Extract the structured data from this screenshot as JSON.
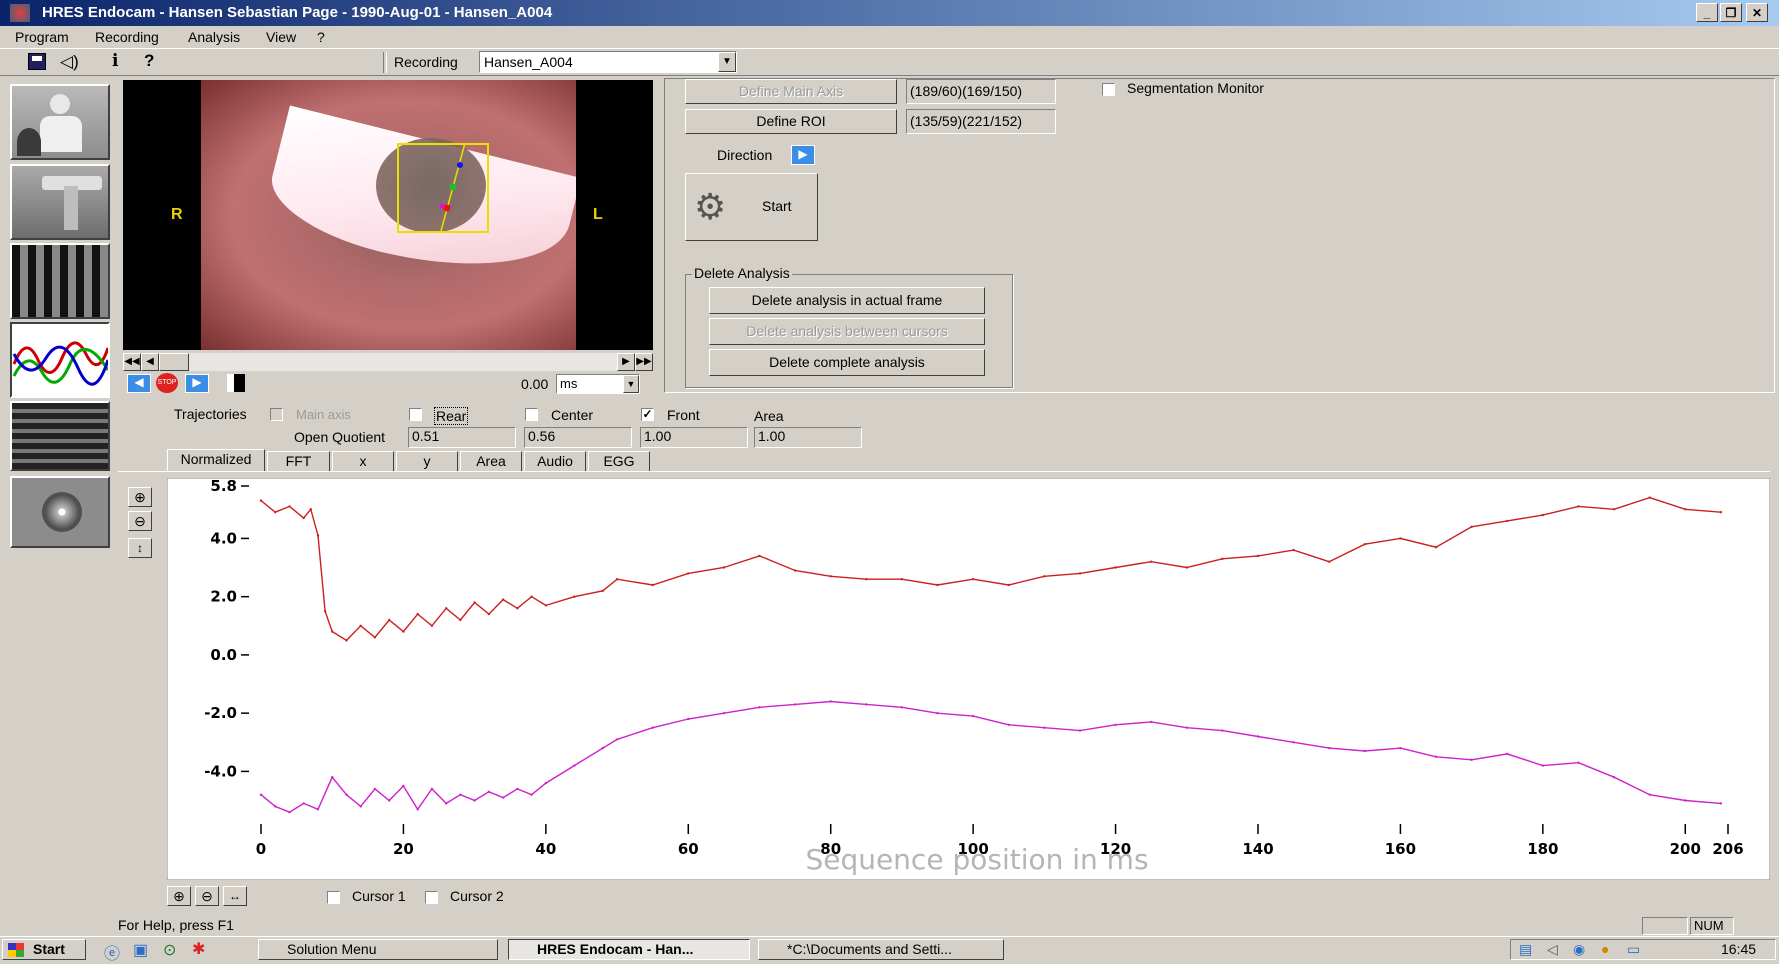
{
  "window": {
    "title": "HRES Endocam - Hansen Sebastian Page - 1990-Aug-01 - Hansen_A004",
    "minimize_label": "_",
    "restore_label": "❐",
    "close_label": "✕"
  },
  "menu": [
    "Program",
    "Recording",
    "Analysis",
    "View",
    "?"
  ],
  "toolbar": {
    "recording_label": "Recording",
    "recording_value": "Hansen_A004"
  },
  "video": {
    "label_r": "R",
    "label_l": "L",
    "time_value": "0.00",
    "time_unit": "ms"
  },
  "controls": {
    "define_main_axis_label": "Define Main Axis",
    "main_axis_value": "(189/60)(169/150)",
    "define_roi_label": "Define ROI",
    "roi_value": "(135/59)(221/152)",
    "direction_label": "Direction",
    "start_label": "Start",
    "segmentation_monitor_label": "Segmentation Monitor",
    "segmentation_monitor_checked": false
  },
  "delete_analysis": {
    "group_label": "Delete Analysis",
    "actual_frame_label": "Delete analysis in actual frame",
    "between_cursors_label": "Delete analysis between cursors",
    "complete_label": "Delete complete analysis"
  },
  "trajectories": {
    "label": "Trajectories",
    "items": [
      {
        "label": "Main axis",
        "checked": false,
        "disabled": true
      },
      {
        "label": "Rear",
        "checked": false,
        "disabled": false
      },
      {
        "label": "Center",
        "checked": false,
        "disabled": false
      },
      {
        "label": "Front",
        "checked": true,
        "disabled": false
      }
    ],
    "area_label": "Area",
    "open_quotient_label": "Open Quotient",
    "open_quotient_values": [
      "0.51",
      "0.56",
      "1.00",
      "1.00"
    ]
  },
  "tabs": [
    "Normalized",
    "FFT",
    "x",
    "y",
    "Area",
    "Audio",
    "EGG"
  ],
  "active_tab": "Normalized",
  "bottom": {
    "cursor1_label": "Cursor 1",
    "cursor2_label": "Cursor 2"
  },
  "status": {
    "help_text": "For Help, press F1",
    "num_indicator": "NUM"
  },
  "taskbar": {
    "start_label": "Start",
    "items": [
      "Solution Menu",
      "HRES Endocam - Han...",
      "*C:\\Documents and Setti..."
    ],
    "clock": "16:45"
  },
  "colors": {
    "series_upper": "#cc1f1f",
    "series_lower": "#cc22cc",
    "title_gradient_start": "#0a246a"
  },
  "chart_data": {
    "type": "line",
    "xlabel": "Sequence position in ms",
    "ylabel": "",
    "xlim": [
      0,
      206
    ],
    "ylim": [
      -5.6,
      5.8
    ],
    "xticks": [
      "0",
      "20",
      "40",
      "60",
      "80",
      "100",
      "120",
      "140",
      "160",
      "180",
      "200",
      "206"
    ],
    "yticks": [
      "5.8",
      "4.0",
      "2.0",
      "0.0",
      "-2.0",
      "-4.0"
    ],
    "series": [
      {
        "x": [
          0,
          2,
          4,
          6,
          7,
          8,
          9,
          10,
          12,
          14,
          16,
          18,
          20,
          22,
          24,
          26,
          28,
          30,
          32,
          34,
          36,
          38,
          40,
          44,
          48,
          50,
          55,
          60,
          65,
          70,
          75,
          80,
          85,
          90,
          95,
          100,
          105,
          110,
          115,
          120,
          125,
          130,
          135,
          140,
          145,
          150,
          155,
          160,
          165,
          170,
          175,
          180,
          185,
          190,
          195,
          200,
          205
        ],
        "y": [
          5.3,
          4.9,
          5.1,
          4.7,
          5.0,
          4.1,
          1.5,
          0.8,
          0.5,
          1.0,
          0.6,
          1.2,
          0.8,
          1.4,
          1.0,
          1.6,
          1.2,
          1.8,
          1.4,
          1.9,
          1.6,
          2.0,
          1.7,
          2.0,
          2.2,
          2.6,
          2.4,
          2.8,
          3.0,
          3.4,
          2.9,
          2.7,
          2.6,
          2.6,
          2.4,
          2.6,
          2.4,
          2.7,
          2.8,
          3.0,
          3.2,
          3.0,
          3.3,
          3.4,
          3.6,
          3.2,
          3.8,
          4.0,
          3.7,
          4.4,
          4.6,
          4.8,
          5.1,
          5.0,
          5.4,
          5.0,
          4.9
        ]
      },
      {
        "x": [
          0,
          2,
          4,
          6,
          8,
          10,
          12,
          14,
          16,
          18,
          20,
          22,
          24,
          26,
          28,
          30,
          32,
          34,
          36,
          38,
          40,
          44,
          48,
          50,
          55,
          60,
          65,
          70,
          75,
          80,
          85,
          90,
          95,
          100,
          105,
          110,
          115,
          120,
          125,
          130,
          135,
          140,
          145,
          150,
          155,
          160,
          165,
          170,
          175,
          180,
          185,
          190,
          195,
          200,
          205
        ],
        "y": [
          -4.8,
          -5.2,
          -5.4,
          -5.1,
          -5.3,
          -4.2,
          -4.8,
          -5.2,
          -4.6,
          -5.0,
          -4.5,
          -5.3,
          -4.6,
          -5.1,
          -4.8,
          -5.0,
          -4.7,
          -4.9,
          -4.6,
          -4.8,
          -4.4,
          -3.8,
          -3.2,
          -2.9,
          -2.5,
          -2.2,
          -2.0,
          -1.8,
          -1.7,
          -1.6,
          -1.7,
          -1.8,
          -2.0,
          -2.1,
          -2.4,
          -2.5,
          -2.6,
          -2.4,
          -2.3,
          -2.5,
          -2.6,
          -2.8,
          -3.0,
          -3.2,
          -3.3,
          -3.2,
          -3.5,
          -3.6,
          -3.4,
          -3.8,
          -3.7,
          -4.2,
          -4.8,
          -5.0,
          -5.1
        ]
      }
    ],
    "grid": false
  }
}
